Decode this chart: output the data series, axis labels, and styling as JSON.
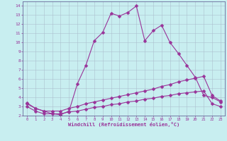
{
  "xlabel": "Windchill (Refroidissement éolien,°C)",
  "bg_color": "#c8eef0",
  "line_color": "#993399",
  "grid_color": "#aabbcc",
  "xlim": [
    -0.5,
    23.5
  ],
  "ylim": [
    2,
    14.5
  ],
  "yticks": [
    2,
    3,
    4,
    5,
    6,
    7,
    8,
    9,
    10,
    11,
    12,
    13,
    14
  ],
  "xticks": [
    0,
    1,
    2,
    3,
    4,
    5,
    6,
    7,
    8,
    9,
    10,
    11,
    12,
    13,
    14,
    15,
    16,
    17,
    18,
    19,
    20,
    21,
    22,
    23
  ],
  "line1_x": [
    0,
    1,
    2,
    3,
    4,
    5,
    6,
    7,
    8,
    9,
    10,
    11,
    12,
    13,
    14,
    15,
    16,
    17,
    18,
    19,
    20,
    21,
    22,
    23
  ],
  "line1_y": [
    3.4,
    2.8,
    2.5,
    2.2,
    2.1,
    2.5,
    5.5,
    7.5,
    10.2,
    11.1,
    13.2,
    12.9,
    13.3,
    14.0,
    10.2,
    11.3,
    11.9,
    10.0,
    8.8,
    7.5,
    6.2,
    4.2,
    4.0,
    3.5
  ],
  "line2_x": [
    0,
    1,
    2,
    3,
    4,
    5,
    6,
    7,
    8,
    9,
    10,
    11,
    12,
    13,
    14,
    15,
    16,
    17,
    18,
    19,
    20,
    21,
    22,
    23
  ],
  "line2_y": [
    3.3,
    2.8,
    2.5,
    2.5,
    2.5,
    2.8,
    3.0,
    3.3,
    3.5,
    3.7,
    3.9,
    4.1,
    4.3,
    4.5,
    4.7,
    4.9,
    5.2,
    5.4,
    5.7,
    5.9,
    6.1,
    6.3,
    4.2,
    3.6
  ],
  "line3_x": [
    0,
    1,
    2,
    3,
    4,
    5,
    6,
    7,
    8,
    9,
    10,
    11,
    12,
    13,
    14,
    15,
    16,
    17,
    18,
    19,
    20,
    21,
    22,
    23
  ],
  "line3_y": [
    3.0,
    2.5,
    2.2,
    2.2,
    2.2,
    2.4,
    2.5,
    2.7,
    2.9,
    3.0,
    3.2,
    3.3,
    3.5,
    3.6,
    3.8,
    3.9,
    4.1,
    4.2,
    4.4,
    4.5,
    4.6,
    4.7,
    3.3,
    3.0
  ]
}
